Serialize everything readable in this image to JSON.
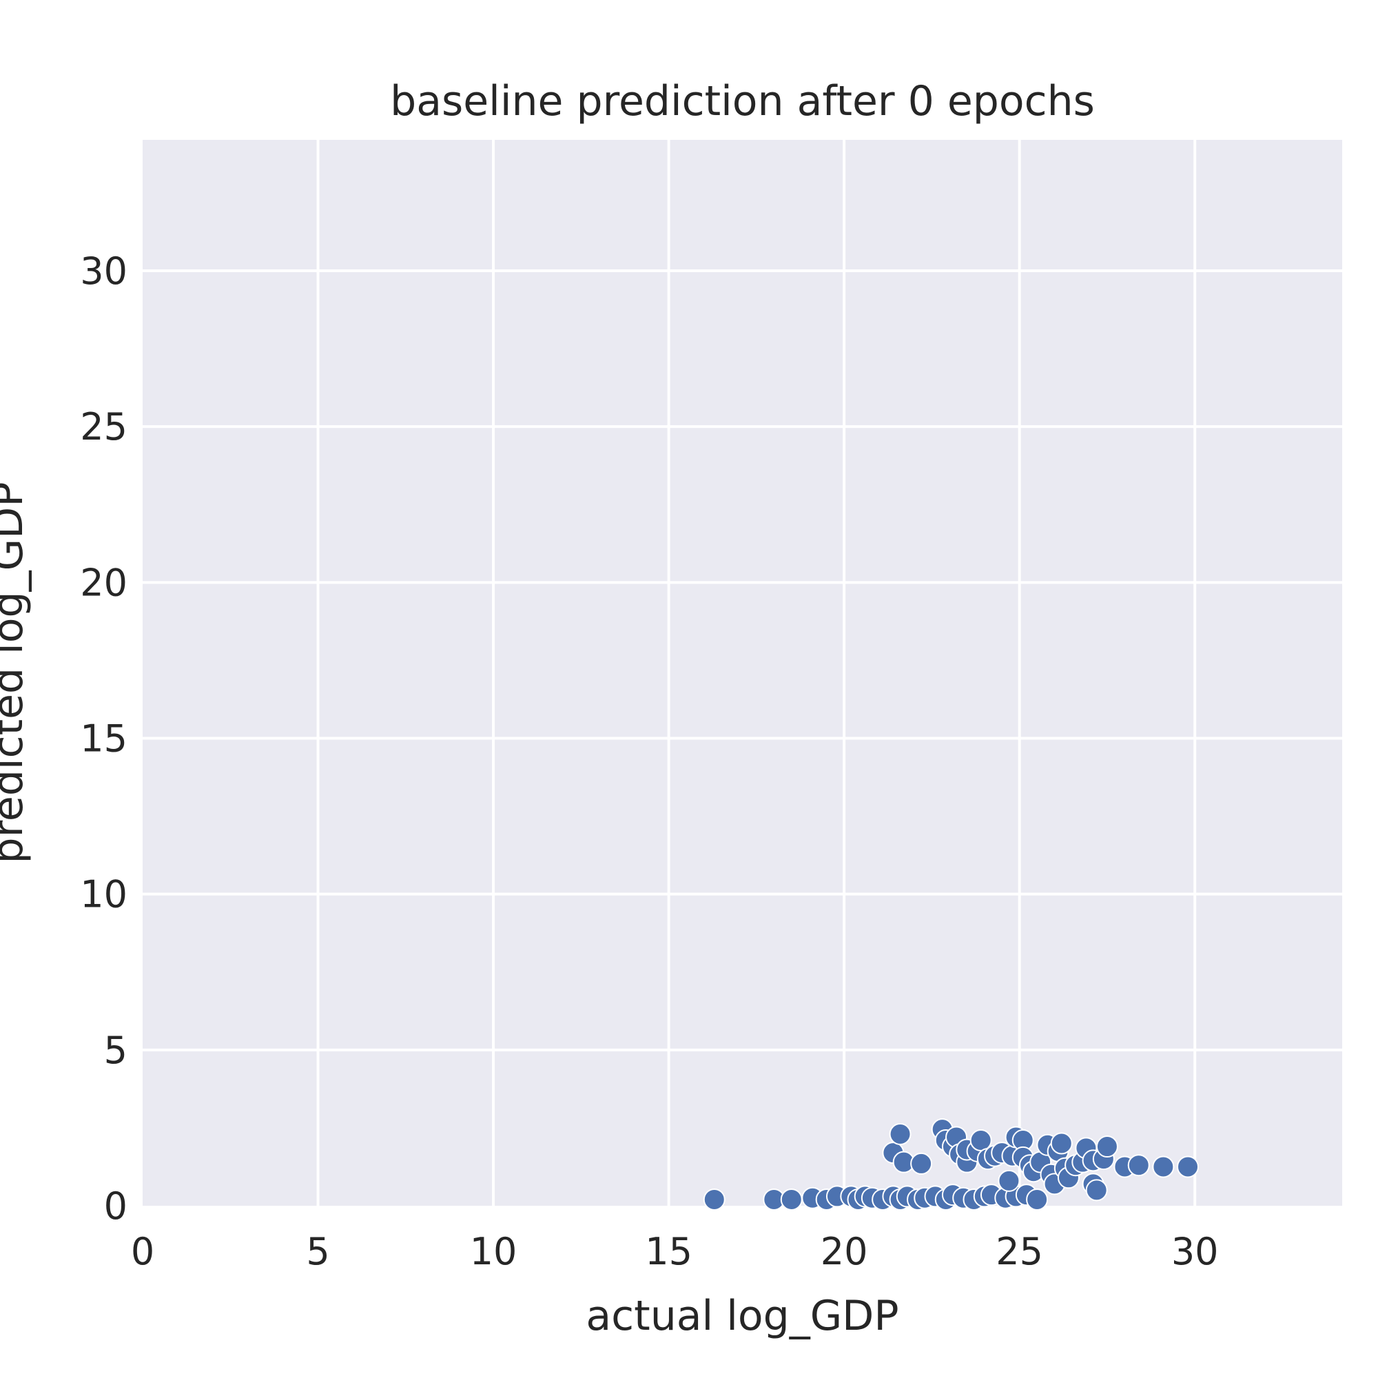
{
  "chart_data": {
    "type": "scatter",
    "title": "baseline prediction after 0 epochs",
    "xlabel": "actual log_GDP",
    "ylabel": "predicted log_GDP",
    "xlim": [
      0,
      34.2
    ],
    "ylim": [
      0,
      34.2
    ],
    "x_ticks": [
      0,
      5,
      10,
      15,
      20,
      25,
      30
    ],
    "y_ticks": [
      0,
      5,
      10,
      15,
      20,
      25,
      30
    ],
    "x_tick_labels": [
      "0",
      "5",
      "10",
      "15",
      "20",
      "25",
      "30"
    ],
    "y_tick_labels": [
      "0",
      "5",
      "10",
      "15",
      "20",
      "25",
      "30"
    ],
    "grid": true,
    "colors": {
      "plot_background": "#eaeaf2",
      "grid": "#ffffff",
      "marker": "#4c72b0",
      "marker_edge": "#ffffff",
      "text": "#262626"
    },
    "series": [
      {
        "points": [
          [
            16.3,
            0.2
          ],
          [
            18.0,
            0.2
          ],
          [
            18.5,
            0.2
          ],
          [
            19.1,
            0.25
          ],
          [
            19.5,
            0.2
          ],
          [
            19.8,
            0.3
          ],
          [
            20.2,
            0.3
          ],
          [
            20.4,
            0.2
          ],
          [
            20.6,
            0.3
          ],
          [
            20.8,
            0.25
          ],
          [
            21.1,
            0.2
          ],
          [
            21.4,
            0.3
          ],
          [
            21.6,
            0.2
          ],
          [
            21.8,
            0.3
          ],
          [
            22.1,
            0.2
          ],
          [
            22.3,
            0.25
          ],
          [
            22.6,
            0.3
          ],
          [
            22.9,
            0.2
          ],
          [
            23.1,
            0.35
          ],
          [
            23.4,
            0.25
          ],
          [
            23.7,
            0.2
          ],
          [
            24.0,
            0.3
          ],
          [
            24.2,
            0.35
          ],
          [
            24.6,
            0.25
          ],
          [
            24.9,
            0.3
          ],
          [
            25.2,
            0.35
          ],
          [
            25.5,
            0.2
          ],
          [
            21.4,
            1.7
          ],
          [
            21.6,
            2.3
          ],
          [
            21.7,
            1.4
          ],
          [
            22.2,
            1.35
          ],
          [
            22.8,
            2.45
          ],
          [
            22.9,
            2.1
          ],
          [
            23.1,
            1.9
          ],
          [
            23.2,
            2.2
          ],
          [
            23.3,
            1.65
          ],
          [
            23.5,
            1.4
          ],
          [
            23.5,
            1.8
          ],
          [
            23.8,
            1.75
          ],
          [
            23.9,
            2.1
          ],
          [
            24.1,
            1.5
          ],
          [
            24.3,
            1.6
          ],
          [
            24.5,
            1.7
          ],
          [
            24.8,
            1.6
          ],
          [
            24.9,
            2.2
          ],
          [
            25.1,
            2.1
          ],
          [
            25.1,
            1.55
          ],
          [
            25.3,
            1.3
          ],
          [
            25.4,
            1.1
          ],
          [
            25.6,
            1.4
          ],
          [
            25.8,
            1.95
          ],
          [
            25.9,
            1.0
          ],
          [
            26.0,
            0.7
          ],
          [
            26.1,
            1.75
          ],
          [
            26.2,
            2.0
          ],
          [
            26.3,
            1.2
          ],
          [
            26.4,
            0.9
          ],
          [
            26.6,
            1.3
          ],
          [
            26.8,
            1.4
          ],
          [
            26.9,
            1.85
          ],
          [
            27.1,
            1.45
          ],
          [
            27.1,
            0.7
          ],
          [
            27.2,
            0.5
          ],
          [
            27.4,
            1.5
          ],
          [
            27.5,
            1.9
          ],
          [
            28.0,
            1.25
          ],
          [
            28.4,
            1.3
          ],
          [
            29.1,
            1.25
          ],
          [
            29.8,
            1.25
          ],
          [
            24.7,
            0.8
          ]
        ]
      }
    ]
  }
}
